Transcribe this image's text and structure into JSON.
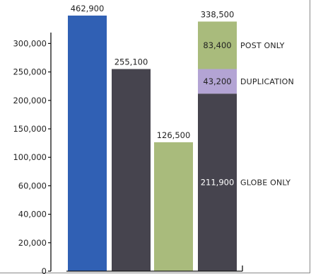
{
  "chart_data": {
    "type": "bar",
    "stacked": true,
    "title": "",
    "xlabel": "",
    "ylabel": "",
    "grid": false,
    "legend": "inline labels to the right of stacked bar",
    "y_tick_labels": [
      "0",
      "20,000",
      "40,000",
      "60,000",
      "100,000",
      "150,000",
      "200,000",
      "250,000",
      "300,000"
    ],
    "bars": [
      {
        "value": 462900,
        "label": "462,900",
        "color": "#3060b4",
        "label_position": "above"
      },
      {
        "value": 255100,
        "label": "255,100",
        "color": "#46444e",
        "label_position": "above"
      },
      {
        "value": 126500,
        "label": "126,500",
        "color": "#a9bb7c",
        "label_position": "above"
      },
      {
        "value": 338500,
        "label": "338,500",
        "label_position": "above",
        "segments": [
          {
            "name": "GLOBE ONLY",
            "value": 211900,
            "label": "211,900",
            "color": "#46444e"
          },
          {
            "name": "DUPLICATION",
            "value": 43200,
            "label": "43,200",
            "color": "#b3a4d4"
          },
          {
            "name": "POST ONLY",
            "value": 83400,
            "label": "83,400",
            "color": "#a9bb7c"
          }
        ]
      }
    ]
  }
}
